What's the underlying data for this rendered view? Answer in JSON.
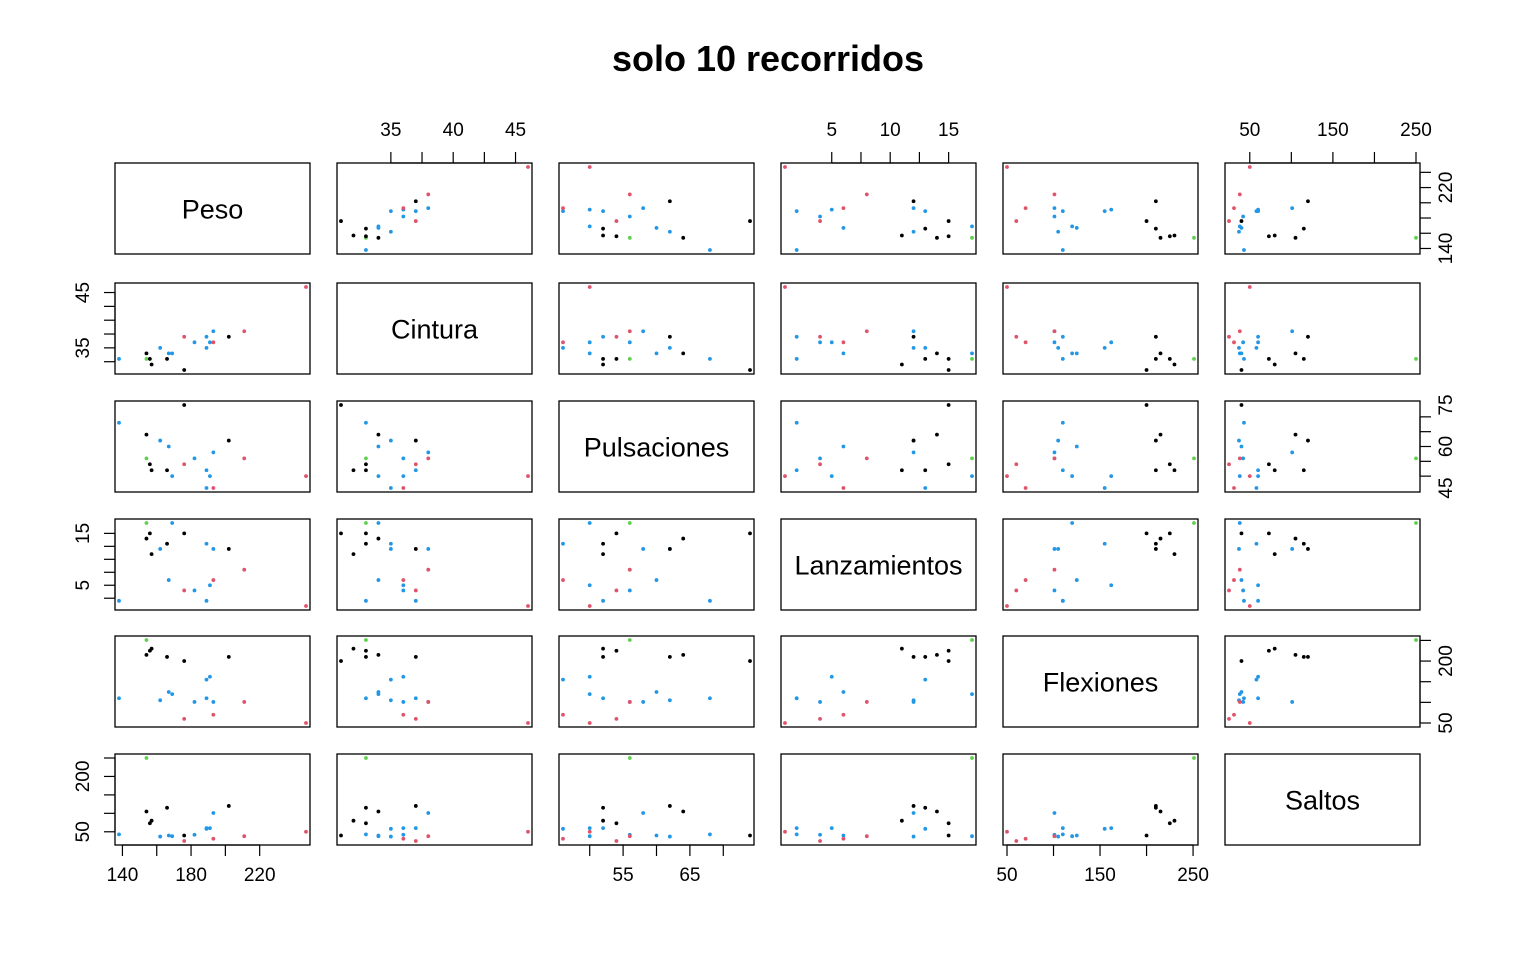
{
  "chart_data": {
    "type": "scatter",
    "title": "solo 10 recorridos",
    "variables": [
      "Peso",
      "Cintura",
      "Pulsaciones",
      "Lanzamientos",
      "Flexiones",
      "Saltos"
    ],
    "ranges": {
      "Peso": [
        138,
        247
      ],
      "Cintura": [
        31,
        46
      ],
      "Pulsaciones": [
        46,
        74
      ],
      "Lanzamientos": [
        1,
        17
      ],
      "Flexiones": [
        50,
        251
      ],
      "Saltos": [
        25,
        250
      ]
    },
    "ticks": {
      "Peso": [
        "140",
        "180",
        "220"
      ],
      "Cintura": [
        "35",
        "40",
        "45"
      ],
      "Pulsaciones": [
        "45",
        "55",
        "65",
        "75"
      ],
      "Lanzamientos": [
        "5",
        "10",
        "15"
      ],
      "Flexiones": [
        "50",
        "150",
        "250"
      ],
      "Saltos": [
        "50",
        "150",
        "250"
      ]
    },
    "right_ticks": {
      "Peso": [
        "140",
        "220"
      ],
      "Pulsaciones": [
        "45",
        "60",
        "75"
      ],
      "Flexiones": [
        "50",
        "200"
      ]
    },
    "left_ticks": {
      "Cintura": [
        "35",
        "45"
      ],
      "Lanzamientos": [
        "5",
        "15"
      ],
      "Saltos": [
        "50",
        "200"
      ]
    },
    "group_colors": {
      "black": "#000000",
      "red": "#DF536B",
      "green": "#61D04F",
      "blue": "#2297E6"
    },
    "points": [
      {
        "Peso": 191,
        "Cintura": 36,
        "Pulsaciones": 50,
        "Lanzamientos": 5,
        "Flexiones": 162,
        "Saltos": 60,
        "group": "blue"
      },
      {
        "Peso": 189,
        "Cintura": 37,
        "Pulsaciones": 52,
        "Lanzamientos": 2,
        "Flexiones": 110,
        "Saltos": 60,
        "group": "blue"
      },
      {
        "Peso": 193,
        "Cintura": 38,
        "Pulsaciones": 58,
        "Lanzamientos": 12,
        "Flexiones": 101,
        "Saltos": 101,
        "group": "blue"
      },
      {
        "Peso": 162,
        "Cintura": 35,
        "Pulsaciones": 62,
        "Lanzamientos": 12,
        "Flexiones": 105,
        "Saltos": 37,
        "group": "blue"
      },
      {
        "Peso": 189,
        "Cintura": 35,
        "Pulsaciones": 46,
        "Lanzamientos": 13,
        "Flexiones": 155,
        "Saltos": 58,
        "group": "blue"
      },
      {
        "Peso": 182,
        "Cintura": 36,
        "Pulsaciones": 56,
        "Lanzamientos": 4,
        "Flexiones": 101,
        "Saltos": 42,
        "group": "blue"
      },
      {
        "Peso": 211,
        "Cintura": 38,
        "Pulsaciones": 56,
        "Lanzamientos": 8,
        "Flexiones": 101,
        "Saltos": 38,
        "group": "red"
      },
      {
        "Peso": 167,
        "Cintura": 34,
        "Pulsaciones": 60,
        "Lanzamientos": 6,
        "Flexiones": 125,
        "Saltos": 40,
        "group": "blue"
      },
      {
        "Peso": 176,
        "Cintura": 31,
        "Pulsaciones": 74,
        "Lanzamientos": 15,
        "Flexiones": 200,
        "Saltos": 40,
        "group": "black"
      },
      {
        "Peso": 154,
        "Cintura": 33,
        "Pulsaciones": 56,
        "Lanzamientos": 17,
        "Flexiones": 251,
        "Saltos": 250,
        "group": "green"
      },
      {
        "Peso": 169,
        "Cintura": 34,
        "Pulsaciones": 50,
        "Lanzamientos": 17,
        "Flexiones": 120,
        "Saltos": 38,
        "group": "blue"
      },
      {
        "Peso": 166,
        "Cintura": 33,
        "Pulsaciones": 52,
        "Lanzamientos": 13,
        "Flexiones": 210,
        "Saltos": 115,
        "group": "black"
      },
      {
        "Peso": 154,
        "Cintura": 34,
        "Pulsaciones": 64,
        "Lanzamientos": 14,
        "Flexiones": 215,
        "Saltos": 105,
        "group": "black"
      },
      {
        "Peso": 247,
        "Cintura": 46,
        "Pulsaciones": 50,
        "Lanzamientos": 1,
        "Flexiones": 50,
        "Saltos": 50,
        "group": "red"
      },
      {
        "Peso": 193,
        "Cintura": 36,
        "Pulsaciones": 46,
        "Lanzamientos": 6,
        "Flexiones": 70,
        "Saltos": 31,
        "group": "red"
      },
      {
        "Peso": 202,
        "Cintura": 37,
        "Pulsaciones": 62,
        "Lanzamientos": 12,
        "Flexiones": 210,
        "Saltos": 120,
        "group": "black"
      },
      {
        "Peso": 176,
        "Cintura": 37,
        "Pulsaciones": 54,
        "Lanzamientos": 4,
        "Flexiones": 60,
        "Saltos": 25,
        "group": "red"
      },
      {
        "Peso": 157,
        "Cintura": 32,
        "Pulsaciones": 52,
        "Lanzamientos": 11,
        "Flexiones": 230,
        "Saltos": 80,
        "group": "black"
      },
      {
        "Peso": 156,
        "Cintura": 33,
        "Pulsaciones": 54,
        "Lanzamientos": 15,
        "Flexiones": 225,
        "Saltos": 73,
        "group": "black"
      },
      {
        "Peso": 138,
        "Cintura": 33,
        "Pulsaciones": 68,
        "Lanzamientos": 2,
        "Flexiones": 110,
        "Saltos": 43,
        "group": "blue"
      }
    ]
  }
}
